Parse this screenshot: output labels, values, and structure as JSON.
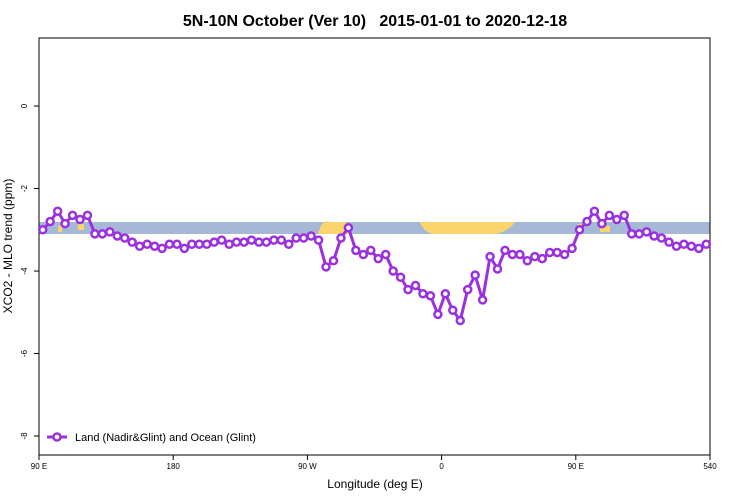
{
  "chart_data": {
    "type": "line",
    "title": "5N-10N October (Ver 10)   2015-01-01 to 2020-12-18",
    "xlabel": "Longitude (deg E)",
    "ylabel": "XCO2 - MLO trend (ppm)",
    "x": [
      92.5,
      97.5,
      102.5,
      107.5,
      112.5,
      117.5,
      122.5,
      127.5,
      132.5,
      137.5,
      142.5,
      147.5,
      152.5,
      157.5,
      162.5,
      167.5,
      172.5,
      177.5,
      182.5,
      187.5,
      192.5,
      197.5,
      202.5,
      207.5,
      212.5,
      217.5,
      222.5,
      227.5,
      232.5,
      237.5,
      242.5,
      247.5,
      252.5,
      257.5,
      262.5,
      267.5,
      272.5,
      277.5,
      282.5,
      287.5,
      292.5,
      297.5,
      302.5,
      307.5,
      312.5,
      317.5,
      322.5,
      327.5,
      332.5,
      337.5,
      342.5,
      347.5,
      352.5,
      357.5,
      362.5,
      367.5,
      372.5,
      377.5,
      382.5,
      387.5,
      392.5,
      397.5,
      402.5,
      407.5,
      412.5,
      417.5,
      422.5,
      427.5,
      432.5,
      437.5,
      442.5,
      447.5,
      452.5,
      457.5,
      462.5,
      467.5,
      472.5,
      477.5,
      482.5,
      487.5,
      492.5,
      497.5,
      502.5,
      507.5,
      512.5,
      517.5,
      522.5,
      527.5,
      532.5,
      537.5
    ],
    "series": [
      {
        "name": "Land (Nadir&Glint) and Ocean (Glint)",
        "color": "#9b30e0",
        "values": [
          -3.0,
          -2.8,
          -2.55,
          -2.85,
          -2.65,
          -2.75,
          -2.65,
          -3.1,
          -3.1,
          -3.05,
          -3.15,
          -3.2,
          -3.3,
          -3.4,
          -3.35,
          -3.4,
          -3.45,
          -3.35,
          -3.35,
          -3.45,
          -3.35,
          -3.35,
          -3.35,
          -3.3,
          -3.25,
          -3.35,
          -3.3,
          -3.3,
          -3.25,
          -3.3,
          -3.3,
          -3.25,
          -3.25,
          -3.35,
          -3.2,
          -3.2,
          -3.15,
          -3.25,
          -3.9,
          -3.75,
          -3.2,
          -2.95,
          -3.5,
          -3.6,
          -3.5,
          -3.7,
          -3.6,
          -4.0,
          -4.15,
          -4.45,
          -4.35,
          -4.55,
          -4.6,
          -5.05,
          -4.55,
          -4.95,
          -5.2,
          -4.45,
          -4.1,
          -4.7,
          -3.65,
          -3.95,
          -3.5,
          -3.6,
          -3.6,
          -3.75,
          -3.65,
          -3.7,
          -3.55,
          -3.55,
          -3.6,
          -3.45,
          -3.0,
          -2.8,
          -2.55,
          -2.85,
          -2.65,
          -2.75,
          -2.65,
          -3.1,
          -3.1,
          -3.05,
          -3.15,
          -3.2,
          -3.3,
          -3.4,
          -3.35,
          -3.4,
          -3.45,
          -3.35
        ]
      }
    ],
    "xlim": [
      90,
      540
    ],
    "xticks": [
      {
        "value": 90,
        "label": "90 E"
      },
      180,
      {
        "value": 270,
        "label": "90 W"
      },
      {
        "value": 360,
        "label": "0"
      },
      {
        "value": 450,
        "label": "90 E"
      },
      540
    ],
    "ylim": [
      -8.46,
      1.65
    ],
    "yticks": [
      0,
      -2,
      -4,
      -6,
      -8
    ],
    "legend": "bottom-left"
  }
}
